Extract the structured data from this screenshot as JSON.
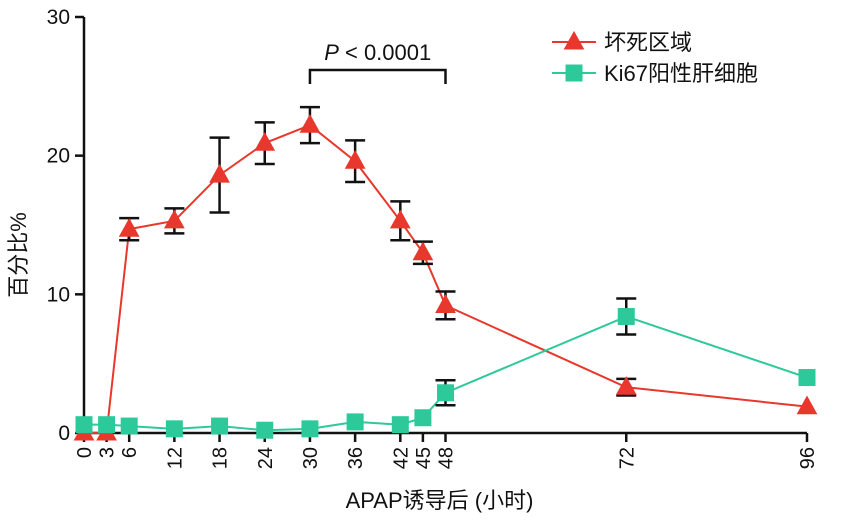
{
  "chart_data": {
    "type": "line",
    "title": "",
    "xlabel": "APAP诱导后 (小时)",
    "ylabel": "百分比%",
    "xlim": [
      0,
      96
    ],
    "ylim": [
      0,
      30
    ],
    "x_ticks": [
      0,
      3,
      6,
      12,
      18,
      24,
      30,
      36,
      42,
      45,
      48,
      72,
      96
    ],
    "y_ticks": [
      0,
      10,
      20,
      30
    ],
    "grid": false,
    "legend_position": "top-right",
    "annotation": {
      "label_prefix": "P",
      "label_rest": " < 0.0001",
      "x_from": 30,
      "x_to": 48
    },
    "series": [
      {
        "name": "坏死区域",
        "marker": "triangle",
        "color": "#e8372c",
        "points": [
          {
            "x": 0,
            "y": 0
          },
          {
            "x": 3,
            "y": 0
          },
          {
            "x": 6,
            "y": 14.7,
            "err": 0.8
          },
          {
            "x": 12,
            "y": 15.3,
            "err": 0.9
          },
          {
            "x": 18,
            "y": 18.6,
            "err": 2.7
          },
          {
            "x": 24,
            "y": 20.9,
            "err": 1.5
          },
          {
            "x": 30,
            "y": 22.2,
            "err": 1.3
          },
          {
            "x": 36,
            "y": 19.6,
            "err": 1.5
          },
          {
            "x": 42,
            "y": 15.3,
            "err": 1.4
          },
          {
            "x": 45,
            "y": 13.0,
            "err": 0.8
          },
          {
            "x": 48,
            "y": 9.2,
            "err": 1.0
          },
          {
            "x": 72,
            "y": 3.3,
            "err": 0.6
          },
          {
            "x": 96,
            "y": 1.9
          }
        ]
      },
      {
        "name": "Ki67阳性肝细胞",
        "marker": "square",
        "color": "#2ec99a",
        "points": [
          {
            "x": 0,
            "y": 0.6
          },
          {
            "x": 3,
            "y": 0.6
          },
          {
            "x": 6,
            "y": 0.5
          },
          {
            "x": 12,
            "y": 0.3
          },
          {
            "x": 18,
            "y": 0.5
          },
          {
            "x": 24,
            "y": 0.2
          },
          {
            "x": 30,
            "y": 0.3
          },
          {
            "x": 36,
            "y": 0.8
          },
          {
            "x": 42,
            "y": 0.6
          },
          {
            "x": 45,
            "y": 1.1
          },
          {
            "x": 48,
            "y": 2.9,
            "err": 0.9
          },
          {
            "x": 72,
            "y": 8.4,
            "err": 1.3
          },
          {
            "x": 96,
            "y": 4.0
          }
        ]
      }
    ]
  }
}
